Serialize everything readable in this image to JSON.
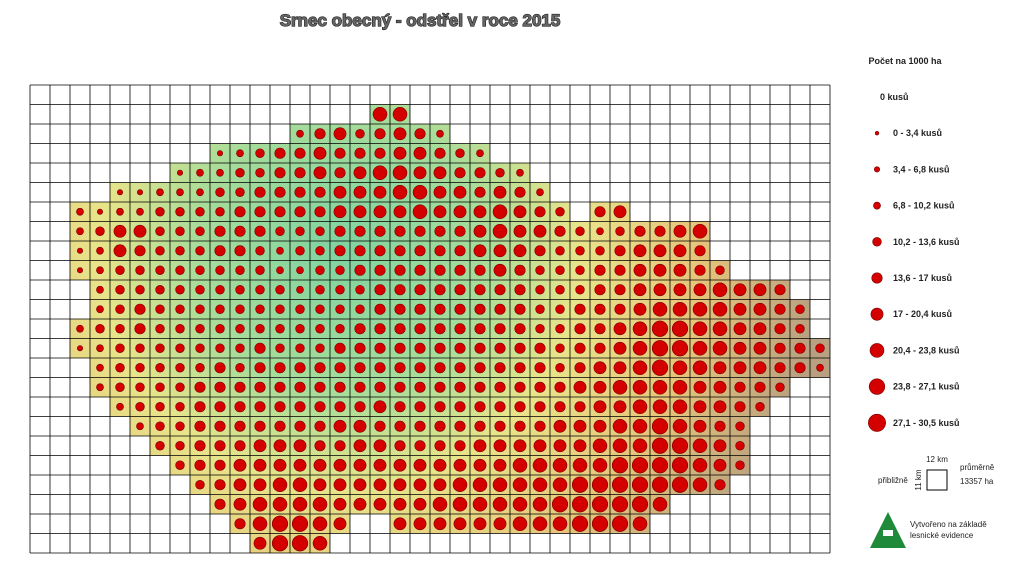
{
  "title": "Srnec obecný - odstřel v roce 2015",
  "legend": {
    "title": "Počet na 1000 ha",
    "items": [
      "0 kusů",
      "0 - 3,4 kusů",
      "3,4 - 6,8 kusů",
      "6,8 - 10,2 kusů",
      "10,2 - 13,6 kusů",
      "13,6 - 17 kusů",
      "17 - 20,4 kusů",
      "20,4 - 23,8 kusů",
      "23,8 - 27,1 kusů",
      "27,1 - 30,5 kusů"
    ]
  },
  "scale": {
    "width": "12 km",
    "height": "11 km",
    "left": "přibližně",
    "right_top": "průměrně",
    "right_bottom": "13357 ha"
  },
  "footer": {
    "line1": "Vytvořeno na základě",
    "line2": "lesnické evidence"
  },
  "map": {
    "rows": [
      [],
      [
        null,
        null,
        null,
        null,
        null,
        null,
        null,
        null,
        null,
        null,
        null,
        null,
        null,
        null,
        null,
        null,
        null,
        7,
        7
      ],
      [
        null,
        null,
        null,
        null,
        null,
        null,
        null,
        null,
        null,
        null,
        null,
        null,
        null,
        3,
        5,
        6,
        4,
        5,
        6,
        5,
        3
      ],
      [
        null,
        null,
        null,
        null,
        null,
        null,
        null,
        null,
        null,
        2,
        3,
        4,
        5,
        5,
        6,
        5,
        5,
        5,
        6,
        6,
        5,
        4,
        3
      ],
      [
        null,
        null,
        null,
        null,
        null,
        null,
        null,
        2,
        3,
        3,
        4,
        4,
        5,
        5,
        6,
        5,
        6,
        7,
        7,
        6,
        6,
        5,
        5,
        4,
        3
      ],
      [
        null,
        null,
        null,
        null,
        2,
        2,
        3,
        3,
        3,
        4,
        4,
        5,
        5,
        5,
        5,
        6,
        6,
        6,
        7,
        7,
        6,
        6,
        5,
        6,
        5,
        3
      ],
      [
        null,
        null,
        3,
        2,
        3,
        3,
        4,
        4,
        4,
        4,
        5,
        5,
        5,
        5,
        5,
        6,
        6,
        6,
        6,
        7,
        6,
        6,
        6,
        7,
        6,
        5,
        4,
        null,
        5,
        6
      ],
      [
        null,
        null,
        3,
        4,
        6,
        6,
        4,
        4,
        4,
        5,
        5,
        5,
        4,
        4,
        4,
        5,
        5,
        5,
        5,
        5,
        5,
        5,
        6,
        7,
        6,
        6,
        5,
        4,
        3,
        4,
        5,
        5,
        6,
        7
      ],
      [
        null,
        null,
        2,
        3,
        6,
        5,
        4,
        4,
        4,
        5,
        5,
        4,
        3,
        4,
        4,
        5,
        5,
        5,
        5,
        5,
        5,
        5,
        6,
        6,
        6,
        5,
        4,
        4,
        4,
        5,
        6,
        6,
        6,
        5
      ],
      [
        null,
        null,
        2,
        3,
        4,
        4,
        4,
        4,
        4,
        4,
        4,
        4,
        3,
        3,
        4,
        4,
        5,
        5,
        5,
        5,
        5,
        5,
        5,
        6,
        5,
        4,
        4,
        4,
        5,
        5,
        6,
        6,
        6,
        5,
        4
      ],
      [
        null,
        null,
        null,
        3,
        4,
        4,
        4,
        4,
        4,
        4,
        4,
        4,
        4,
        3,
        4,
        4,
        4,
        5,
        5,
        5,
        5,
        5,
        5,
        5,
        5,
        4,
        4,
        4,
        5,
        5,
        6,
        6,
        6,
        6,
        7,
        6,
        6,
        5
      ],
      [
        null,
        null,
        null,
        3,
        4,
        5,
        4,
        4,
        4,
        4,
        4,
        4,
        4,
        4,
        4,
        4,
        4,
        5,
        5,
        5,
        5,
        5,
        5,
        5,
        5,
        4,
        4,
        5,
        5,
        5,
        6,
        7,
        7,
        7,
        7,
        6,
        6,
        5,
        4
      ],
      [
        null,
        null,
        3,
        4,
        4,
        5,
        4,
        4,
        4,
        4,
        4,
        4,
        4,
        4,
        4,
        4,
        5,
        5,
        5,
        5,
        5,
        5,
        5,
        5,
        5,
        4,
        4,
        5,
        5,
        6,
        7,
        8,
        8,
        7,
        7,
        6,
        6,
        5,
        4
      ],
      [
        null,
        null,
        2,
        3,
        4,
        4,
        4,
        4,
        4,
        4,
        4,
        5,
        4,
        4,
        4,
        5,
        5,
        5,
        5,
        5,
        5,
        5,
        5,
        5,
        5,
        5,
        4,
        5,
        5,
        6,
        7,
        8,
        8,
        7,
        7,
        6,
        6,
        5,
        5,
        4
      ],
      [
        null,
        null,
        null,
        3,
        4,
        4,
        4,
        4,
        4,
        5,
        4,
        5,
        5,
        5,
        5,
        5,
        5,
        5,
        5,
        5,
        5,
        5,
        5,
        5,
        5,
        5,
        4,
        5,
        6,
        6,
        7,
        8,
        7,
        7,
        6,
        6,
        6,
        5,
        5,
        3
      ],
      [
        null,
        null,
        null,
        3,
        4,
        4,
        4,
        4,
        5,
        5,
        5,
        5,
        5,
        5,
        5,
        5,
        5,
        5,
        5,
        5,
        5,
        5,
        5,
        5,
        5,
        5,
        5,
        6,
        6,
        7,
        7,
        7,
        7,
        6,
        6,
        5,
        5,
        4
      ],
      [
        null,
        null,
        null,
        null,
        3,
        4,
        4,
        4,
        5,
        5,
        5,
        5,
        5,
        5,
        5,
        5,
        5,
        6,
        5,
        5,
        5,
        5,
        5,
        5,
        5,
        5,
        5,
        5,
        6,
        6,
        7,
        7,
        7,
        6,
        6,
        5,
        4
      ],
      [
        null,
        null,
        null,
        null,
        null,
        3,
        4,
        4,
        5,
        5,
        5,
        5,
        5,
        5,
        5,
        6,
        6,
        5,
        5,
        5,
        5,
        5,
        5,
        5,
        5,
        5,
        6,
        6,
        6,
        7,
        7,
        8,
        7,
        6,
        5,
        4
      ],
      [
        null,
        null,
        null,
        null,
        null,
        null,
        4,
        4,
        5,
        5,
        5,
        6,
        6,
        6,
        5,
        5,
        6,
        6,
        5,
        5,
        5,
        5,
        6,
        6,
        6,
        6,
        6,
        6,
        7,
        7,
        7,
        8,
        8,
        7,
        6,
        4
      ],
      [
        null,
        null,
        null,
        null,
        null,
        null,
        null,
        4,
        5,
        5,
        6,
        6,
        6,
        6,
        6,
        6,
        6,
        6,
        6,
        6,
        6,
        6,
        6,
        6,
        7,
        7,
        7,
        7,
        7,
        8,
        8,
        8,
        8,
        7,
        6,
        4
      ],
      [
        null,
        null,
        null,
        null,
        null,
        null,
        null,
        null,
        4,
        5,
        6,
        6,
        7,
        7,
        6,
        6,
        6,
        6,
        6,
        6,
        6,
        7,
        7,
        7,
        7,
        7,
        7,
        8,
        8,
        8,
        8,
        8,
        8,
        7,
        5
      ],
      [
        null,
        null,
        null,
        null,
        null,
        null,
        null,
        null,
        null,
        5,
        6,
        7,
        7,
        7,
        7,
        6,
        6,
        6,
        6,
        6,
        7,
        7,
        7,
        7,
        7,
        7,
        8,
        8,
        8,
        8,
        8,
        7
      ],
      [
        null,
        null,
        null,
        null,
        null,
        null,
        null,
        null,
        null,
        null,
        5,
        7,
        8,
        8,
        7,
        6,
        null,
        null,
        6,
        6,
        6,
        6,
        6,
        6,
        7,
        7,
        7,
        8,
        8,
        8,
        7
      ],
      [
        null,
        null,
        null,
        null,
        null,
        null,
        null,
        null,
        null,
        null,
        null,
        6,
        8,
        8,
        7
      ]
    ]
  }
}
